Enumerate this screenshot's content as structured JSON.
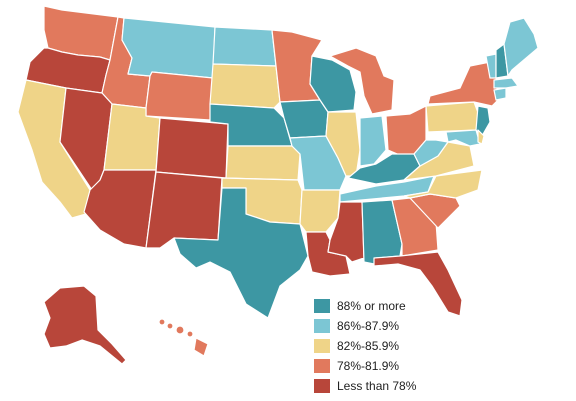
{
  "colors": {
    "c1": "#3d97a3",
    "c2": "#7cc6d4",
    "c3": "#efd488",
    "c4": "#e1795d",
    "c5": "#b8463a"
  },
  "legend": {
    "items": [
      {
        "label": "88% or more",
        "color_key": "c1"
      },
      {
        "label": "86%-87.9%",
        "color_key": "c2"
      },
      {
        "label": "82%-85.9%",
        "color_key": "c3"
      },
      {
        "label": "78%-81.9%",
        "color_key": "c4"
      },
      {
        "label": "Less than 78%",
        "color_key": "c5"
      }
    ]
  },
  "states": [
    {
      "id": "WA",
      "color_key": "c4"
    },
    {
      "id": "OR",
      "color_key": "c5"
    },
    {
      "id": "CA",
      "color_key": "c3"
    },
    {
      "id": "ID",
      "color_key": "c4"
    },
    {
      "id": "NV",
      "color_key": "c5"
    },
    {
      "id": "MT",
      "color_key": "c2"
    },
    {
      "id": "WY",
      "color_key": "c4"
    },
    {
      "id": "UT",
      "color_key": "c3"
    },
    {
      "id": "AZ",
      "color_key": "c5"
    },
    {
      "id": "CO",
      "color_key": "c5"
    },
    {
      "id": "NM",
      "color_key": "c5"
    },
    {
      "id": "ND",
      "color_key": "c2"
    },
    {
      "id": "SD",
      "color_key": "c3"
    },
    {
      "id": "NE",
      "color_key": "c1"
    },
    {
      "id": "KS",
      "color_key": "c3"
    },
    {
      "id": "OK",
      "color_key": "c3"
    },
    {
      "id": "TX",
      "color_key": "c1"
    },
    {
      "id": "MN",
      "color_key": "c4"
    },
    {
      "id": "IA",
      "color_key": "c1"
    },
    {
      "id": "MO",
      "color_key": "c2"
    },
    {
      "id": "AR",
      "color_key": "c3"
    },
    {
      "id": "LA",
      "color_key": "c5"
    },
    {
      "id": "WI",
      "color_key": "c1"
    },
    {
      "id": "IL",
      "color_key": "c3"
    },
    {
      "id": "MI",
      "color_key": "c4"
    },
    {
      "id": "IN",
      "color_key": "c2"
    },
    {
      "id": "OH",
      "color_key": "c4"
    },
    {
      "id": "KY",
      "color_key": "c1"
    },
    {
      "id": "TN",
      "color_key": "c2"
    },
    {
      "id": "MS",
      "color_key": "c5"
    },
    {
      "id": "AL",
      "color_key": "c1"
    },
    {
      "id": "GA",
      "color_key": "c4"
    },
    {
      "id": "FL",
      "color_key": "c5"
    },
    {
      "id": "SC",
      "color_key": "c4"
    },
    {
      "id": "NC",
      "color_key": "c3"
    },
    {
      "id": "VA",
      "color_key": "c3"
    },
    {
      "id": "WV",
      "color_key": "c2"
    },
    {
      "id": "PA",
      "color_key": "c3"
    },
    {
      "id": "NY",
      "color_key": "c4"
    },
    {
      "id": "NJ",
      "color_key": "c1"
    },
    {
      "id": "MD",
      "color_key": "c2"
    },
    {
      "id": "DE",
      "color_key": "c3"
    },
    {
      "id": "CT",
      "color_key": "c2"
    },
    {
      "id": "MA",
      "color_key": "c2"
    },
    {
      "id": "VT",
      "color_key": "c2"
    },
    {
      "id": "NH",
      "color_key": "c1"
    },
    {
      "id": "ME",
      "color_key": "c2"
    },
    {
      "id": "AK",
      "color_key": "c5"
    },
    {
      "id": "HI",
      "color_key": "c4"
    }
  ]
}
